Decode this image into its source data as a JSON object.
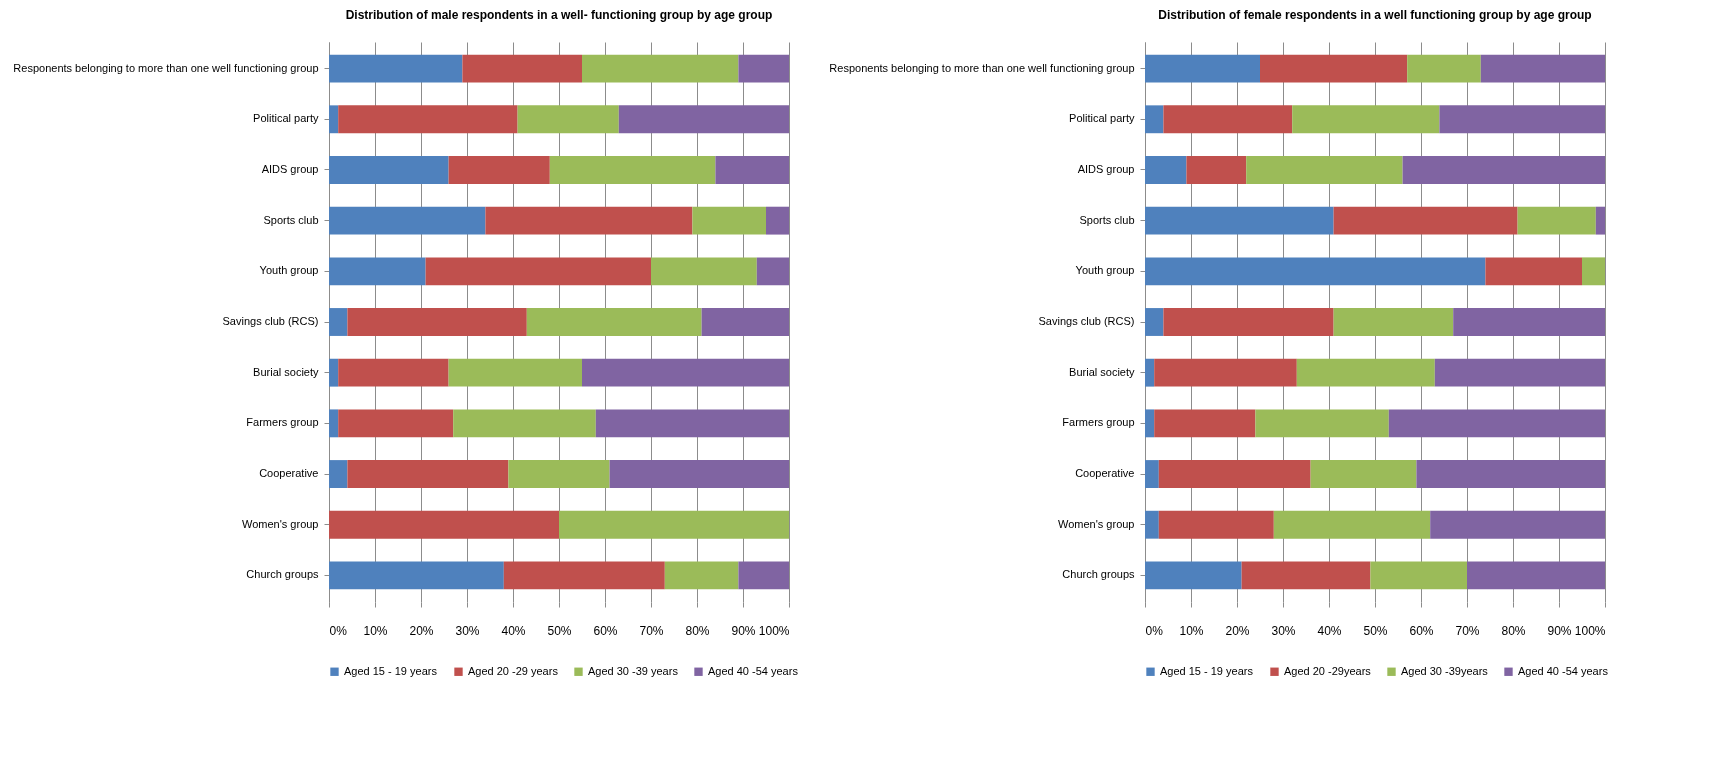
{
  "chart_data": [
    {
      "type": "bar",
      "orientation": "horizontal",
      "stacked": true,
      "title": "Distribution of  male respondents in a well- functioning group by age group",
      "categories": [
        "Responents  belonging to more than one well functioning group",
        "Political party",
        "AIDS group",
        "Sports club",
        "Youth group",
        "Savings club (RCS)",
        "Burial society",
        "Farmers group",
        "Cooperative",
        "Women's group",
        "Church groups"
      ],
      "series": [
        {
          "name": "Aged 15  - 19 years",
          "color": "#4f81bd",
          "values": [
            29,
            2,
            26,
            34,
            21,
            4,
            2,
            2,
            4,
            0,
            38
          ]
        },
        {
          "name": "Aged 20  -29 years",
          "color": "#c0504d",
          "values": [
            26,
            39,
            22,
            45,
            49,
            39,
            24,
            25,
            35,
            50,
            35
          ]
        },
        {
          "name": "Aged 30  -39 years",
          "color": "#9bbb59",
          "values": [
            34,
            22,
            36,
            16,
            23,
            38,
            29,
            31,
            22,
            50,
            16
          ]
        },
        {
          "name": "Aged 40  -54 years",
          "color": "#8064a2",
          "values": [
            11,
            37,
            16,
            5,
            7,
            19,
            45,
            42,
            39,
            0,
            11
          ]
        }
      ],
      "xlim": [
        0,
        100
      ],
      "xticks": [
        {
          "value": 0,
          "label": "0%"
        },
        {
          "value": 10,
          "label": "10%"
        },
        {
          "value": 20,
          "label": "20%"
        },
        {
          "value": 30,
          "label": "30%"
        },
        {
          "value": 40,
          "label": "40%"
        },
        {
          "value": 50,
          "label": "50%"
        },
        {
          "value": 60,
          "label": "60%"
        },
        {
          "value": 70,
          "label": "70%"
        },
        {
          "value": 80,
          "label": "80%"
        },
        {
          "value": 90,
          "label": "90%"
        },
        {
          "value": 100,
          "label": "100%"
        }
      ],
      "grid": "x",
      "legend": "bottom"
    },
    {
      "type": "bar",
      "orientation": "horizontal",
      "stacked": true,
      "title": "Distribution of  female respondents in a well functioning  group by age group",
      "categories": [
        "Responents  belonging to more than one well functioning group",
        "Political party",
        "AIDS group",
        "Sports club",
        "Youth group",
        "Savings club (RCS)",
        "Burial society",
        "Farmers group",
        "Cooperative",
        "Women's group",
        "Church groups"
      ],
      "series": [
        {
          "name": "Aged 15  - 19 years",
          "color": "#4f81bd",
          "values": [
            25,
            4,
            9,
            41,
            74,
            4,
            2,
            2,
            3,
            3,
            21
          ]
        },
        {
          "name": "Aged 20  -29years",
          "color": "#c0504d",
          "values": [
            32,
            28,
            13,
            40,
            21,
            37,
            31,
            22,
            33,
            25,
            28
          ]
        },
        {
          "name": "Aged 30  -39years",
          "color": "#9bbb59",
          "values": [
            16,
            32,
            34,
            17,
            5,
            26,
            30,
            29,
            23,
            34,
            21
          ]
        },
        {
          "name": "Aged 40  -54 years",
          "color": "#8064a2",
          "values": [
            27,
            36,
            44,
            2,
            0,
            33,
            37,
            47,
            41,
            38,
            30
          ]
        }
      ],
      "xlim": [
        0,
        100
      ],
      "xticks": [
        {
          "value": 0,
          "label": "0%"
        },
        {
          "value": 10,
          "label": "10%"
        },
        {
          "value": 20,
          "label": "20%"
        },
        {
          "value": 30,
          "label": "30%"
        },
        {
          "value": 40,
          "label": "40%"
        },
        {
          "value": 50,
          "label": "50%"
        },
        {
          "value": 60,
          "label": "60%"
        },
        {
          "value": 70,
          "label": "70%"
        },
        {
          "value": 80,
          "label": "80%"
        },
        {
          "value": 90,
          "label": "90%"
        },
        {
          "value": 100,
          "label": "100%"
        }
      ],
      "grid": "x",
      "legend": "bottom"
    }
  ]
}
